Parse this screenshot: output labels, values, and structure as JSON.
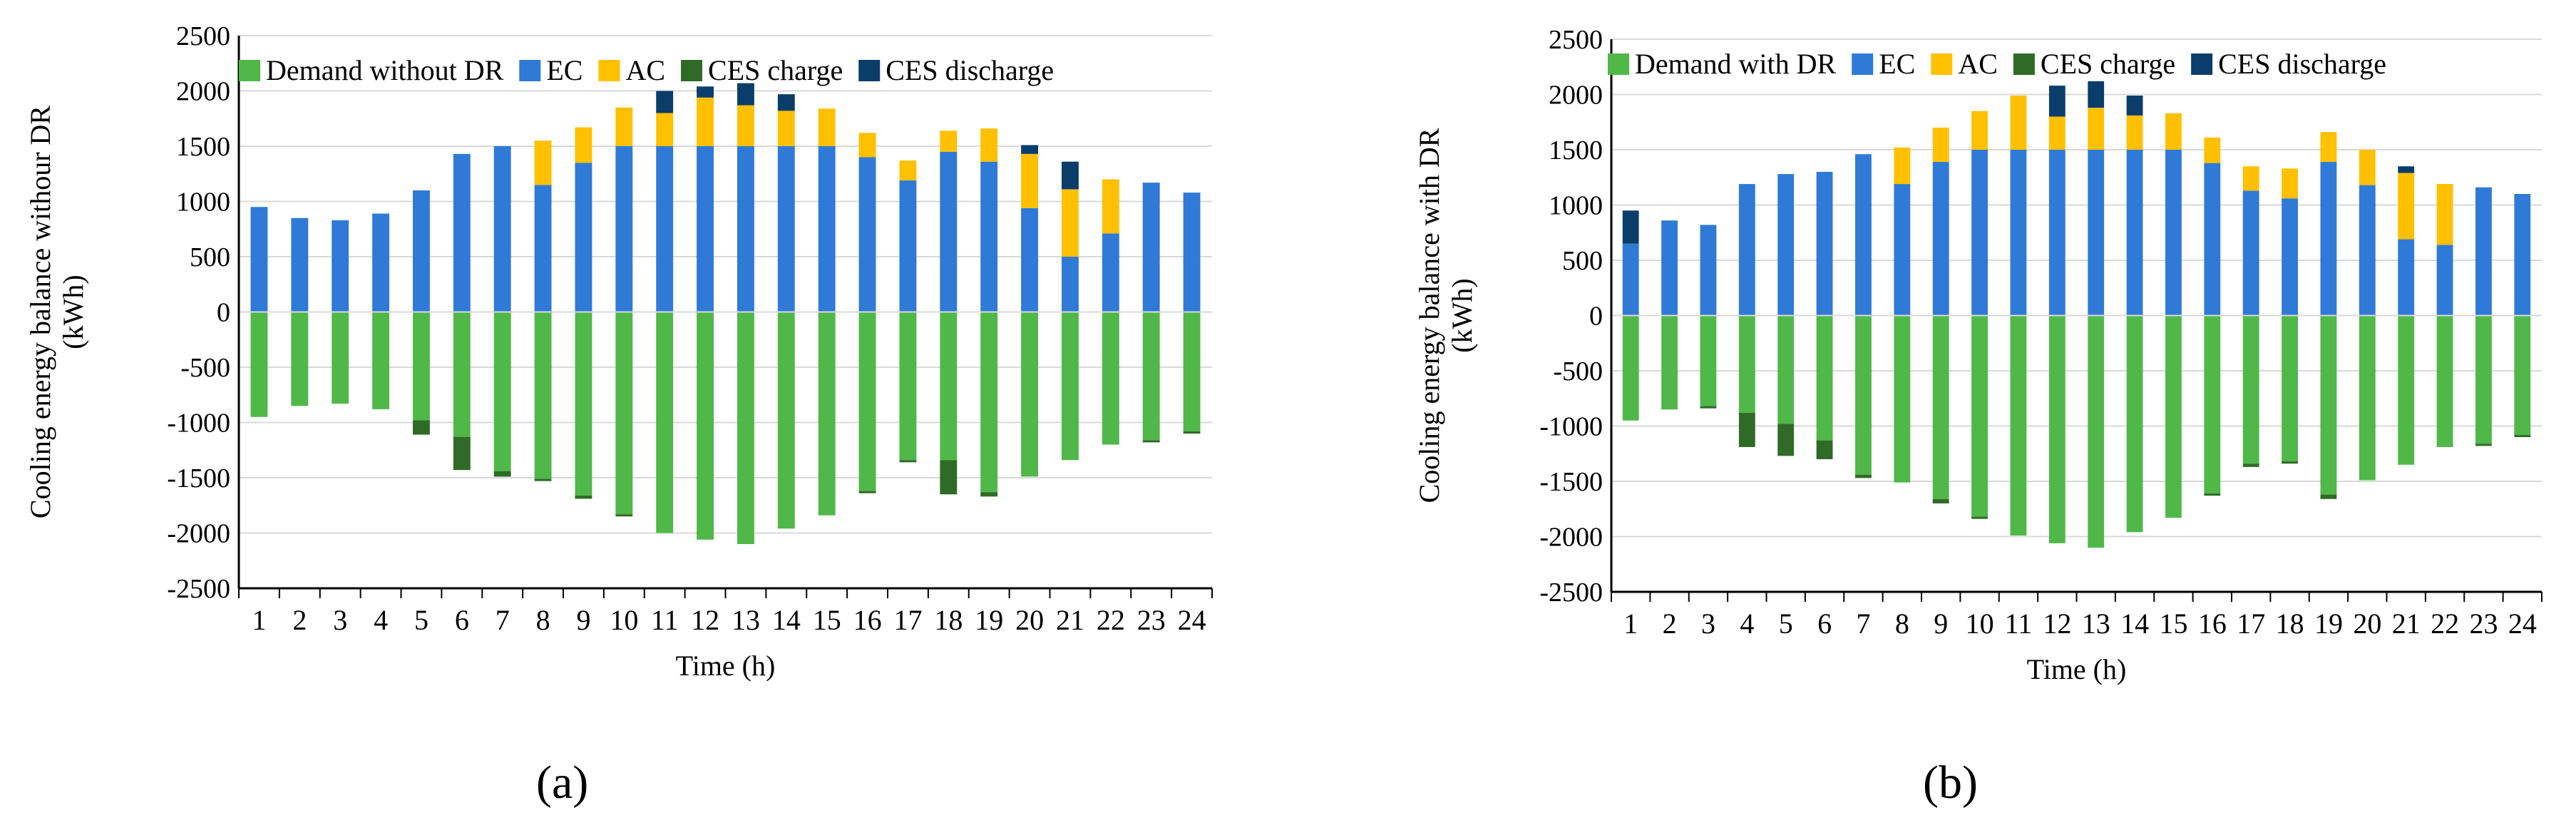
{
  "colors": {
    "demand": "#4fb848",
    "ec": "#2f7ad6",
    "ac": "#ffc000",
    "ces_charge": "#2f6b26",
    "ces_discharge": "#0b3d6b",
    "grid": "#d9d9d9",
    "axis": "#000000"
  },
  "chart_data": [
    {
      "type": "bar",
      "stacked": true,
      "panel_label": "(a)",
      "title": "",
      "ylabel_line1": "Cooling energy balance withour DR",
      "ylabel_line2": "(kWh)",
      "xlabel": "Time (h)",
      "ylim": [
        -2500,
        2500
      ],
      "yticks": [
        "2500",
        "2000",
        "1500",
        "1000",
        "500",
        "0",
        "-500",
        "-1000",
        "-1500",
        "-2000",
        "-2500"
      ],
      "categories": [
        "1",
        "2",
        "3",
        "4",
        "5",
        "6",
        "7",
        "8",
        "9",
        "10",
        "11",
        "12",
        "13",
        "14",
        "15",
        "16",
        "17",
        "18",
        "19",
        "20",
        "21",
        "22",
        "23",
        "24"
      ],
      "legend": [
        "Demand without DR",
        "EC",
        "AC",
        "CES charge",
        "CES discharge"
      ],
      "series": [
        {
          "name": "EC",
          "values": [
            950,
            850,
            830,
            890,
            1100,
            1430,
            1500,
            1150,
            1350,
            1500,
            1500,
            1500,
            1500,
            1500,
            1500,
            1400,
            1190,
            1450,
            1360,
            940,
            500,
            710,
            1170,
            1080
          ]
        },
        {
          "name": "AC",
          "values": [
            0,
            0,
            0,
            0,
            0,
            0,
            0,
            400,
            320,
            350,
            300,
            440,
            370,
            320,
            340,
            220,
            180,
            190,
            300,
            490,
            610,
            490,
            0,
            0
          ]
        },
        {
          "name": "CES discharge",
          "values": [
            0,
            0,
            0,
            0,
            0,
            0,
            0,
            0,
            0,
            0,
            200,
            100,
            200,
            150,
            0,
            0,
            0,
            0,
            0,
            80,
            250,
            0,
            0,
            0
          ]
        },
        {
          "name": "Demand without DR",
          "values": [
            -950,
            -850,
            -830,
            -880,
            -980,
            -1130,
            -1440,
            -1510,
            -1660,
            -1830,
            -2000,
            -2060,
            -2100,
            -1960,
            -1840,
            -1620,
            -1340,
            -1340,
            -1630,
            -1490,
            -1340,
            -1200,
            -1160,
            -1080
          ]
        },
        {
          "name": "CES charge",
          "values": [
            0,
            0,
            0,
            0,
            -130,
            -300,
            -50,
            -20,
            -30,
            -20,
            0,
            0,
            0,
            0,
            0,
            -20,
            -20,
            -310,
            -40,
            0,
            0,
            0,
            -20,
            -20
          ]
        }
      ]
    },
    {
      "type": "bar",
      "stacked": true,
      "panel_label": "(b)",
      "title": "",
      "ylabel_line1": "Cooling energy balance with DR",
      "ylabel_line2": "(kWh)",
      "xlabel": "Time (h)",
      "ylim": [
        -2500,
        2500
      ],
      "yticks": [
        "2500",
        "2000",
        "1500",
        "1000",
        "500",
        "0",
        "-500",
        "-1000",
        "-1500",
        "-2000",
        "-2500"
      ],
      "categories": [
        "1",
        "2",
        "3",
        "4",
        "5",
        "6",
        "7",
        "8",
        "9",
        "10",
        "11",
        "12",
        "13",
        "14",
        "15",
        "16",
        "17",
        "18",
        "19",
        "20",
        "21",
        "22",
        "23",
        "24"
      ],
      "legend": [
        "Demand with DR",
        "EC",
        "AC",
        "CES charge",
        "CES discharge"
      ],
      "series": [
        {
          "name": "EC",
          "values": [
            650,
            860,
            820,
            1190,
            1280,
            1300,
            1460,
            1190,
            1390,
            1500,
            1500,
            1500,
            1500,
            1500,
            1500,
            1380,
            1130,
            1060,
            1390,
            1180,
            690,
            640,
            1160,
            1100
          ]
        },
        {
          "name": "AC",
          "values": [
            0,
            0,
            0,
            0,
            0,
            0,
            0,
            330,
            310,
            350,
            490,
            300,
            380,
            310,
            330,
            230,
            220,
            270,
            270,
            320,
            600,
            550,
            0,
            0
          ]
        },
        {
          "name": "CES discharge",
          "values": [
            300,
            0,
            0,
            0,
            0,
            0,
            0,
            0,
            0,
            0,
            0,
            280,
            240,
            180,
            0,
            0,
            0,
            0,
            0,
            0,
            60,
            0,
            0,
            0
          ]
        },
        {
          "name": "Demand with DR",
          "values": [
            -950,
            -850,
            -820,
            -880,
            -980,
            -1130,
            -1440,
            -1510,
            -1660,
            -1820,
            -1990,
            -2060,
            -2100,
            -1960,
            -1830,
            -1610,
            -1340,
            -1320,
            -1620,
            -1490,
            -1350,
            -1190,
            -1160,
            -1080
          ]
        },
        {
          "name": "CES charge",
          "values": [
            0,
            0,
            -20,
            -310,
            -290,
            -170,
            -30,
            0,
            -40,
            -20,
            0,
            0,
            0,
            0,
            0,
            -20,
            -30,
            -20,
            -40,
            0,
            0,
            0,
            -20,
            -20
          ]
        }
      ]
    }
  ]
}
